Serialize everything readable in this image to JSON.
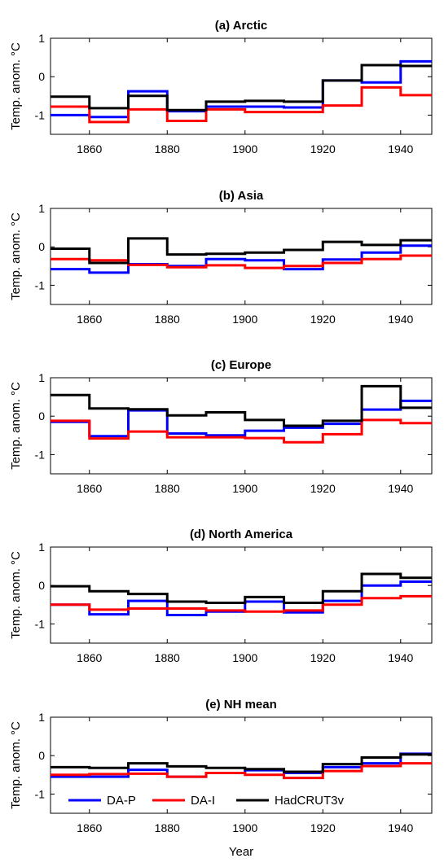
{
  "chart_data": [
    {
      "type": "line",
      "title": "(a) Arctic",
      "ylabel": "Temp. anom. °C",
      "xlabel": "",
      "xlim": [
        1850,
        1948
      ],
      "ylim": [
        -1.5,
        1
      ],
      "xticks": [
        1860,
        1880,
        1900,
        1920,
        1940
      ],
      "yticks": [
        -1,
        0,
        1
      ],
      "x_steps": [
        1850,
        1860,
        1870,
        1880,
        1890,
        1900,
        1910,
        1920,
        1930,
        1940
      ],
      "series": [
        {
          "name": "DA-P",
          "color": "#0000ff",
          "values": [
            -1.0,
            -1.05,
            -0.38,
            -0.9,
            -0.78,
            -0.78,
            -0.8,
            -0.1,
            -0.15,
            0.4
          ]
        },
        {
          "name": "DA-I",
          "color": "#ff0000",
          "values": [
            -0.78,
            -1.18,
            -0.85,
            -1.15,
            -0.85,
            -0.92,
            -0.92,
            -0.75,
            -0.28,
            -0.48
          ]
        },
        {
          "name": "HadCRUT3v",
          "color": "#000000",
          "values": [
            -0.52,
            -0.82,
            -0.5,
            -0.87,
            -0.65,
            -0.63,
            -0.65,
            -0.1,
            0.3,
            0.28
          ]
        }
      ]
    },
    {
      "type": "line",
      "title": "(b) Asia",
      "ylabel": "Temp. anom. °C",
      "xlabel": "",
      "xlim": [
        1850,
        1948
      ],
      "ylim": [
        -1.5,
        1
      ],
      "xticks": [
        1860,
        1880,
        1900,
        1920,
        1940
      ],
      "yticks": [
        -1,
        0,
        1
      ],
      "x_steps": [
        1850,
        1860,
        1870,
        1880,
        1890,
        1900,
        1910,
        1920,
        1930,
        1940
      ],
      "series": [
        {
          "name": "DA-P",
          "color": "#0000ff",
          "values": [
            -0.58,
            -0.67,
            -0.45,
            -0.5,
            -0.32,
            -0.35,
            -0.58,
            -0.33,
            -0.15,
            0.03
          ]
        },
        {
          "name": "DA-I",
          "color": "#ff0000",
          "values": [
            -0.32,
            -0.35,
            -0.47,
            -0.53,
            -0.48,
            -0.55,
            -0.5,
            -0.42,
            -0.32,
            -0.23
          ]
        },
        {
          "name": "HadCRUT3v",
          "color": "#000000",
          "values": [
            -0.05,
            -0.42,
            0.22,
            -0.2,
            -0.18,
            -0.15,
            -0.08,
            0.13,
            0.05,
            0.17
          ]
        }
      ]
    },
    {
      "type": "line",
      "title": "(c) Europe",
      "ylabel": "Temp. anom. °C",
      "xlabel": "",
      "xlim": [
        1850,
        1948
      ],
      "ylim": [
        -1.5,
        1
      ],
      "xticks": [
        1860,
        1880,
        1900,
        1920,
        1940
      ],
      "yticks": [
        -1,
        0,
        1
      ],
      "x_steps": [
        1850,
        1860,
        1870,
        1880,
        1890,
        1900,
        1910,
        1920,
        1930,
        1940
      ],
      "series": [
        {
          "name": "DA-P",
          "color": "#0000ff",
          "values": [
            -0.15,
            -0.52,
            0.15,
            -0.45,
            -0.5,
            -0.38,
            -0.3,
            -0.2,
            0.17,
            0.4
          ]
        },
        {
          "name": "DA-I",
          "color": "#ff0000",
          "values": [
            -0.12,
            -0.58,
            -0.4,
            -0.55,
            -0.55,
            -0.57,
            -0.68,
            -0.47,
            -0.1,
            -0.18
          ]
        },
        {
          "name": "HadCRUT3v",
          "color": "#000000",
          "values": [
            0.55,
            0.2,
            0.18,
            0.02,
            0.1,
            -0.1,
            -0.25,
            -0.12,
            0.78,
            0.22
          ]
        }
      ]
    },
    {
      "type": "line",
      "title": "(d) North America",
      "ylabel": "Temp. anom. °C",
      "xlabel": "",
      "xlim": [
        1850,
        1948
      ],
      "ylim": [
        -1.5,
        1
      ],
      "xticks": [
        1860,
        1880,
        1900,
        1920,
        1940
      ],
      "yticks": [
        -1,
        0,
        1
      ],
      "x_steps": [
        1850,
        1860,
        1870,
        1880,
        1890,
        1900,
        1910,
        1920,
        1930,
        1940
      ],
      "series": [
        {
          "name": "DA-P",
          "color": "#0000ff",
          "values": [
            -0.5,
            -0.75,
            -0.4,
            -0.77,
            -0.68,
            -0.42,
            -0.7,
            -0.4,
            0.0,
            0.1
          ]
        },
        {
          "name": "DA-I",
          "color": "#ff0000",
          "values": [
            -0.5,
            -0.63,
            -0.6,
            -0.6,
            -0.65,
            -0.68,
            -0.65,
            -0.5,
            -0.33,
            -0.28
          ]
        },
        {
          "name": "HadCRUT3v",
          "color": "#000000",
          "values": [
            -0.02,
            -0.15,
            -0.22,
            -0.42,
            -0.45,
            -0.3,
            -0.45,
            -0.15,
            0.3,
            0.2
          ]
        }
      ]
    },
    {
      "type": "line",
      "title": "(e) NH mean",
      "ylabel": "Temp. anom. °C",
      "xlabel": "Year",
      "xlim": [
        1850,
        1948
      ],
      "ylim": [
        -1.5,
        1
      ],
      "xticks": [
        1860,
        1880,
        1900,
        1920,
        1940
      ],
      "yticks": [
        -1,
        0,
        1
      ],
      "legend": "bottom-left",
      "x_steps": [
        1850,
        1860,
        1870,
        1880,
        1890,
        1900,
        1910,
        1920,
        1930,
        1940
      ],
      "series": [
        {
          "name": "DA-P",
          "color": "#0000ff",
          "values": [
            -0.55,
            -0.55,
            -0.37,
            -0.55,
            -0.45,
            -0.38,
            -0.45,
            -0.3,
            -0.2,
            0.05
          ]
        },
        {
          "name": "DA-I",
          "color": "#ff0000",
          "values": [
            -0.5,
            -0.48,
            -0.47,
            -0.55,
            -0.45,
            -0.5,
            -0.58,
            -0.4,
            -0.27,
            -0.2
          ]
        },
        {
          "name": "HadCRUT3v",
          "color": "#000000",
          "values": [
            -0.3,
            -0.32,
            -0.2,
            -0.28,
            -0.32,
            -0.35,
            -0.42,
            -0.22,
            -0.05,
            0.03
          ]
        }
      ]
    }
  ]
}
